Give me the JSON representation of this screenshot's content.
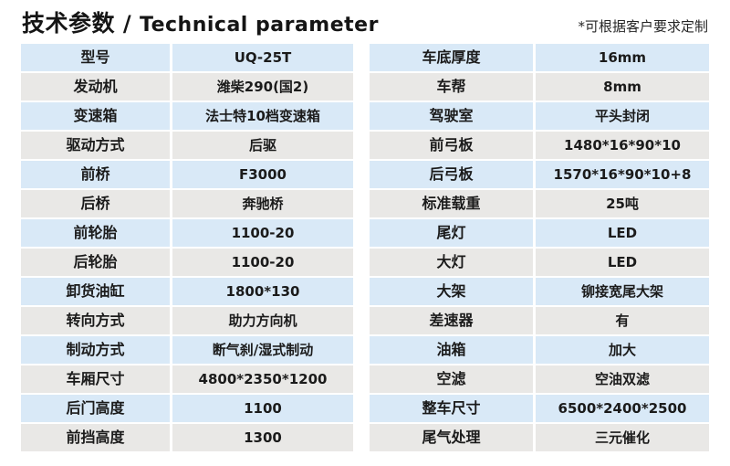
{
  "header": {
    "title_zh": "技术参数",
    "title_sep": " / ",
    "title_en": "Technical parameter",
    "note": "*可根据客户要求定制"
  },
  "colors": {
    "row_blue": "#d9e9f7",
    "row_gray": "#e9e8e6",
    "text": "#1b1b1b"
  },
  "tables": {
    "left": {
      "rows": [
        {
          "label": "型号",
          "value": "UQ-25T"
        },
        {
          "label": "发动机",
          "value": "潍柴290(国2)"
        },
        {
          "label": "变速箱",
          "value": "法士特10档变速箱"
        },
        {
          "label": "驱动方式",
          "value": "后驱"
        },
        {
          "label": "前桥",
          "value": "F3000"
        },
        {
          "label": "后桥",
          "value": "奔驰桥"
        },
        {
          "label": "前轮胎",
          "value": "1100-20"
        },
        {
          "label": "后轮胎",
          "value": "1100-20"
        },
        {
          "label": "卸货油缸",
          "value": "1800*130"
        },
        {
          "label": "转向方式",
          "value": "助力方向机"
        },
        {
          "label": "制动方式",
          "value": "断气刹/湿式制动"
        },
        {
          "label": "车厢尺寸",
          "value": "4800*2350*1200"
        },
        {
          "label": "后门高度",
          "value": "1100"
        },
        {
          "label": "前挡高度",
          "value": "1300"
        }
      ]
    },
    "right": {
      "rows": [
        {
          "label": "车底厚度",
          "value": "16mm"
        },
        {
          "label": "车帮",
          "value": "8mm"
        },
        {
          "label": "驾驶室",
          "value": "平头封闭"
        },
        {
          "label": "前弓板",
          "value": "1480*16*90*10"
        },
        {
          "label": "后弓板",
          "value": "1570*16*90*10+8"
        },
        {
          "label": "标准载重",
          "value": "25吨"
        },
        {
          "label": "尾灯",
          "value": "LED"
        },
        {
          "label": "大灯",
          "value": "LED"
        },
        {
          "label": "大架",
          "value": "铆接宽尾大架"
        },
        {
          "label": "差速器",
          "value": "有"
        },
        {
          "label": "油箱",
          "value": "加大"
        },
        {
          "label": "空滤",
          "value": "空油双滤"
        },
        {
          "label": "整车尺寸",
          "value": "6500*2400*2500"
        },
        {
          "label": "尾气处理",
          "value": "三元催化"
        }
      ]
    }
  }
}
